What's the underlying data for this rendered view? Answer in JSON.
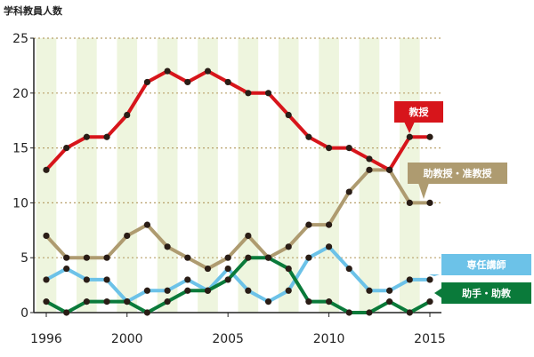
{
  "chart_data": {
    "type": "line",
    "ylabel": "学科教員人数",
    "xlabel": "",
    "xlim": [
      1996,
      2015
    ],
    "ylim": [
      0,
      25
    ],
    "xticks": [
      1996,
      2000,
      2005,
      2010,
      2015
    ],
    "yticks": [
      0,
      5,
      10,
      15,
      20,
      25
    ],
    "grid": true,
    "x": [
      1996,
      1997,
      1998,
      1999,
      2000,
      2001,
      2002,
      2003,
      2004,
      2005,
      2006,
      2007,
      2008,
      2009,
      2010,
      2011,
      2012,
      2013,
      2014,
      2015
    ],
    "series": [
      {
        "name": "教授",
        "color": "#d7151b",
        "values": [
          13,
          15,
          16,
          16,
          18,
          21,
          22,
          21,
          22,
          21,
          20,
          20,
          18,
          16,
          15,
          15,
          14,
          13,
          16,
          16
        ]
      },
      {
        "name": "助教授・准教授",
        "color": "#ae9b70",
        "values": [
          7,
          5,
          5,
          5,
          7,
          8,
          6,
          5,
          4,
          5,
          7,
          5,
          6,
          8,
          8,
          11,
          13,
          13,
          10,
          10
        ]
      },
      {
        "name": "専任講師",
        "color": "#6cc2e8",
        "values": [
          3,
          4,
          3,
          3,
          1,
          2,
          2,
          3,
          2,
          4,
          2,
          1,
          2,
          5,
          6,
          4,
          2,
          2,
          3,
          3
        ]
      },
      {
        "name": "助手・助教",
        "color": "#0a7a3a",
        "values": [
          1,
          0,
          1,
          1,
          1,
          0,
          1,
          2,
          2,
          3,
          5,
          5,
          4,
          1,
          1,
          0,
          0,
          1,
          0,
          1
        ]
      }
    ]
  }
}
